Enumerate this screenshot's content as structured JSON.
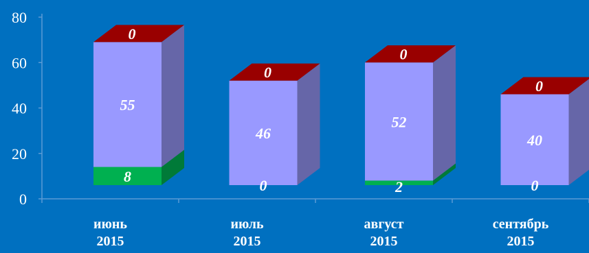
{
  "colors": {
    "background": "#0070C0",
    "axis": "#5B9BD5",
    "bottom_front": "#00B050",
    "bottom_side": "#007A38",
    "middle_front": "#9999FF",
    "middle_side": "#6666A8",
    "top_cap": "#990000",
    "text": "#FFFFFF"
  },
  "chart_data": {
    "type": "bar",
    "stacked": true,
    "three_d": true,
    "categories": [
      [
        "июнь",
        "2015"
      ],
      [
        "июль",
        "2015"
      ],
      [
        "август",
        "2015"
      ],
      [
        "сентябрь",
        "2015"
      ]
    ],
    "series": [
      {
        "values": [
          8,
          0,
          2,
          0
        ],
        "color": "#00B050"
      },
      {
        "values": [
          55,
          46,
          52,
          40
        ],
        "color": "#9999FF"
      },
      {
        "values": [
          0,
          0,
          0,
          0
        ],
        "color": "#990000"
      }
    ],
    "y_ticks": [
      "0",
      "20",
      "40",
      "60",
      "80"
    ],
    "ylim": [
      0,
      80
    ],
    "grid": false,
    "legend": false
  }
}
